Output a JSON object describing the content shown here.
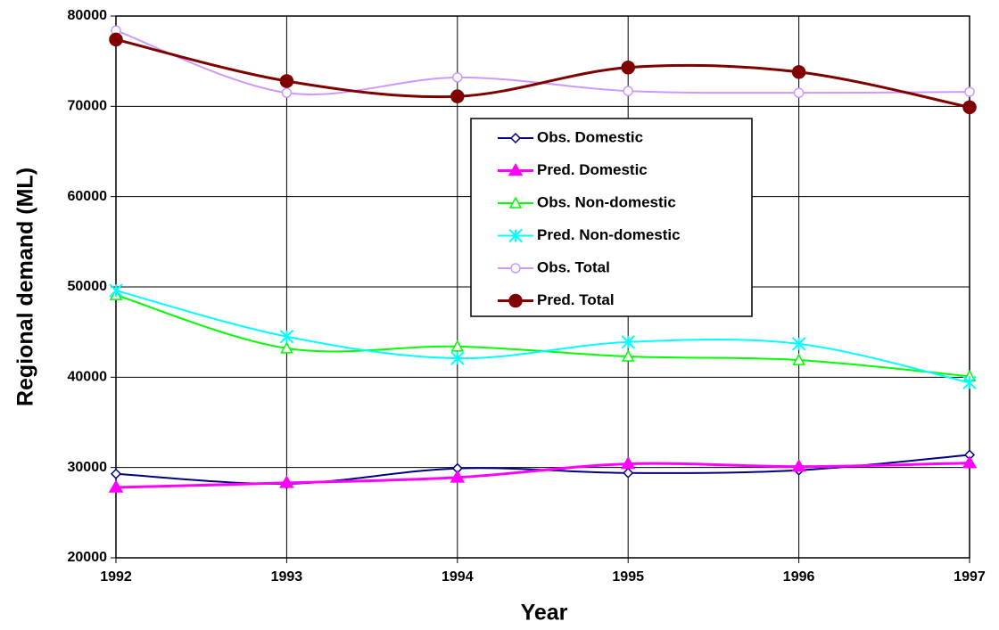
{
  "chart_data": {
    "type": "line",
    "x_label": "Year",
    "y_label": "Regional demand (ML)",
    "x": [
      1992,
      1993,
      1994,
      1995,
      1996,
      1997
    ],
    "xlim": [
      1992,
      1997
    ],
    "xticks": [
      1992,
      1993,
      1994,
      1995,
      1996,
      1997
    ],
    "ylim": [
      20000,
      80000
    ],
    "yticks": [
      20000,
      30000,
      40000,
      50000,
      60000,
      70000,
      80000
    ],
    "grid": true,
    "smooth": true,
    "legend": "center",
    "series": [
      {
        "name": "Obs. Domestic",
        "color": "#000080",
        "marker": "diamond",
        "values": [
          29300,
          28200,
          29900,
          29400,
          29700,
          31400
        ]
      },
      {
        "name": "Pred. Domestic",
        "color": "#ff00ff",
        "marker": "triangle-filled",
        "values": [
          27800,
          28300,
          28900,
          30400,
          30100,
          30500
        ]
      },
      {
        "name": "Obs. Non-domestic",
        "color": "#00ff00",
        "marker": "triangle-open",
        "values": [
          49100,
          43200,
          43400,
          42300,
          41900,
          40100
        ]
      },
      {
        "name": "Pred. Non-domestic",
        "color": "#00ffff",
        "marker": "x",
        "values": [
          49600,
          44500,
          42100,
          43900,
          43700,
          39400
        ]
      },
      {
        "name": "Obs. Total",
        "color": "#cc99ff",
        "marker": "circle-open",
        "values": [
          78400,
          71500,
          73200,
          71700,
          71500,
          71600
        ]
      },
      {
        "name": "Pred. Total",
        "color": "#800000",
        "marker": "circle-filled",
        "values": [
          77400,
          72800,
          71100,
          74300,
          73800,
          69900
        ]
      }
    ]
  }
}
